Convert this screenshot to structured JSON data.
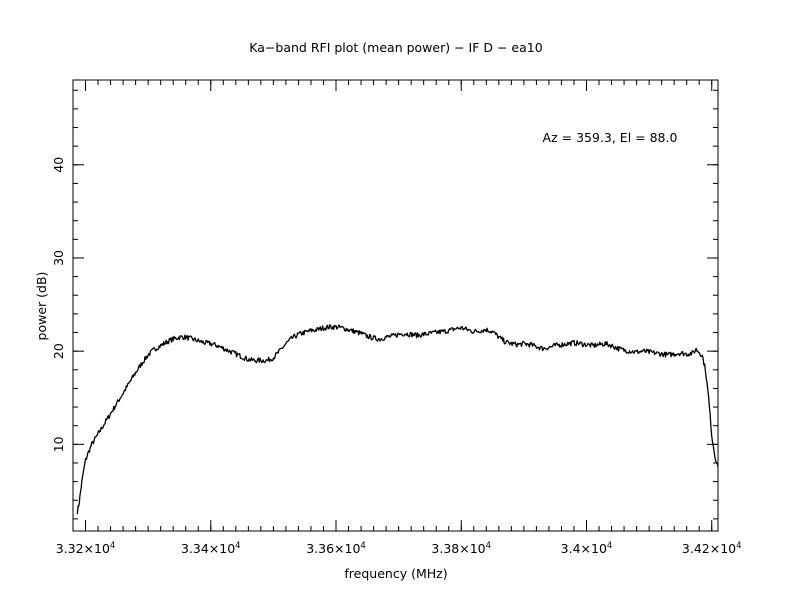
{
  "chart_data": {
    "type": "line",
    "title": "Ka−band RFI plot (mean power) − IF D − ea10",
    "xlabel": "frequency (MHz)",
    "ylabel": "power (dB)",
    "annotation": "Az = 359.3, El = 88.0",
    "xlim": [
      33180,
      34210
    ],
    "ylim": [
      0.7,
      49.1
    ],
    "x_ticks": [
      {
        "value": 33200,
        "mantissa": "3.32",
        "times": "×10",
        "exponent": "4"
      },
      {
        "value": 33400,
        "mantissa": "3.34",
        "times": "×10",
        "exponent": "4"
      },
      {
        "value": 33600,
        "mantissa": "3.36",
        "times": "×10",
        "exponent": "4"
      },
      {
        "value": 33800,
        "mantissa": "3.38",
        "times": "×10",
        "exponent": "4"
      },
      {
        "value": 34000,
        "mantissa": "3.4",
        "times": "×10",
        "exponent": "4"
      },
      {
        "value": 34200,
        "mantissa": "3.42",
        "times": "×10",
        "exponent": "4"
      }
    ],
    "y_ticks": [
      {
        "value": 10,
        "label": "10"
      },
      {
        "value": 20,
        "label": "20"
      },
      {
        "value": 30,
        "label": "30"
      },
      {
        "value": 40,
        "label": "40"
      }
    ],
    "grid": false,
    "line_color": "#000000",
    "series": [
      {
        "x": [
          33187,
          33190,
          33193,
          33196,
          33200,
          33205,
          33210,
          33220,
          33230,
          33240,
          33250,
          33260,
          33270,
          33280,
          33290,
          33300,
          33310,
          33320,
          33330,
          33340,
          33350,
          33360,
          33370,
          33380,
          33390,
          33400,
          33410,
          33420,
          33430,
          33440,
          33450,
          33460,
          33470,
          33480,
          33490,
          33500,
          33510,
          33520,
          33530,
          33540,
          33550,
          33560,
          33570,
          33580,
          33590,
          33600,
          33610,
          33620,
          33630,
          33640,
          33650,
          33660,
          33670,
          33680,
          33690,
          33700,
          33710,
          33720,
          33730,
          33740,
          33750,
          33760,
          33770,
          33780,
          33790,
          33800,
          33810,
          33820,
          33830,
          33840,
          33850,
          33860,
          33870,
          33880,
          33890,
          33900,
          33910,
          33920,
          33930,
          33940,
          33950,
          33960,
          33970,
          33980,
          33990,
          34000,
          34010,
          34020,
          34030,
          34040,
          34050,
          34060,
          34070,
          34080,
          34090,
          34100,
          34110,
          34120,
          34130,
          34140,
          34150,
          34160,
          34170,
          34175,
          34180,
          34185,
          34190,
          34195,
          34200,
          34205,
          34210
        ],
        "y": [
          2.8,
          3.8,
          5.4,
          6.8,
          8.3,
          9.2,
          10.0,
          11.1,
          12.2,
          13.3,
          14.4,
          15.5,
          16.6,
          17.7,
          18.7,
          19.6,
          20.2,
          20.6,
          21.0,
          21.3,
          21.5,
          21.5,
          21.3,
          21.1,
          20.9,
          20.8,
          20.6,
          20.3,
          20.0,
          19.7,
          19.4,
          19.1,
          19.0,
          19.0,
          19.0,
          19.3,
          20.0,
          20.8,
          21.4,
          21.8,
          22.0,
          22.2,
          22.3,
          22.5,
          22.6,
          22.6,
          22.5,
          22.3,
          22.1,
          21.9,
          21.6,
          21.4,
          21.3,
          21.5,
          21.6,
          21.8,
          21.9,
          21.8,
          21.7,
          21.8,
          21.9,
          22.0,
          22.1,
          22.2,
          22.4,
          22.5,
          22.3,
          22.1,
          22.2,
          22.3,
          22.1,
          21.5,
          21.0,
          20.8,
          20.7,
          20.8,
          20.7,
          20.5,
          20.3,
          20.4,
          20.6,
          20.7,
          20.8,
          20.9,
          20.8,
          20.7,
          20.6,
          20.7,
          20.8,
          20.6,
          20.3,
          20.1,
          20.0,
          19.9,
          20.0,
          19.9,
          19.8,
          19.7,
          19.6,
          19.7,
          19.8,
          19.7,
          19.8,
          20.2,
          19.9,
          19.5,
          18.0,
          15.0,
          11.0,
          8.8,
          7.6
        ]
      }
    ]
  }
}
